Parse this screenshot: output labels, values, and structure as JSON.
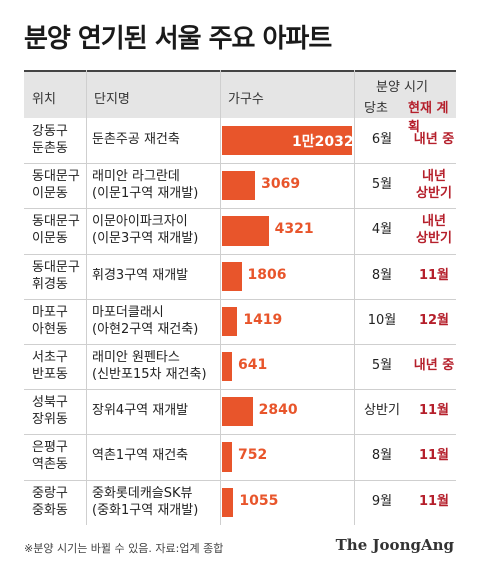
{
  "title": "분양 연기된 서울 주요 아파트",
  "headers": {
    "location": "위치",
    "complex": "단지명",
    "households": "가구수",
    "schedule": "분양 시기",
    "original": "당초",
    "current": "현재 계획"
  },
  "chart_data": {
    "type": "bar",
    "title": "분양 연기된 서울 주요 아파트",
    "categories": [
      "둔촌주공 재건축",
      "래미안 라그란데",
      "이문아이파크자이",
      "휘경3구역 재개발",
      "마포더클래시",
      "래미안 원펜타스",
      "장위4구역 재개발",
      "역촌1구역 재건축",
      "중화롯데캐슬SK뷰"
    ],
    "values": [
      12032,
      3069,
      4321,
      1806,
      1419,
      641,
      2840,
      752,
      1055
    ],
    "xlim": [
      0,
      12032
    ]
  },
  "rows": [
    {
      "loc1": "강동구",
      "loc2": "둔촌동",
      "name1": "둔촌주공 재건축",
      "name2": "",
      "count_label": "1만2032",
      "original": "6월",
      "current1": "내년 중",
      "current2": ""
    },
    {
      "loc1": "동대문구",
      "loc2": "이문동",
      "name1": "래미안 라그란데",
      "name2": "(이문1구역 재개발)",
      "count_label": "3069",
      "original": "5월",
      "current1": "내년",
      "current2": "상반기"
    },
    {
      "loc1": "동대문구",
      "loc2": "이문동",
      "name1": "이문아이파크자이",
      "name2": "(이문3구역 재개발)",
      "count_label": "4321",
      "original": "4월",
      "current1": "내년",
      "current2": "상반기"
    },
    {
      "loc1": "동대문구",
      "loc2": "휘경동",
      "name1": "휘경3구역 재개발",
      "name2": "",
      "count_label": "1806",
      "original": "8월",
      "current1": "11월",
      "current2": ""
    },
    {
      "loc1": "마포구",
      "loc2": "아현동",
      "name1": "마포더클래시",
      "name2": "(아현2구역 재건축)",
      "count_label": "1419",
      "original": "10월",
      "current1": "12월",
      "current2": ""
    },
    {
      "loc1": "서초구",
      "loc2": "반포동",
      "name1": "래미안 원펜타스",
      "name2": "(신반포15차 재건축)",
      "count_label": "641",
      "original": "5월",
      "current1": "내년 중",
      "current2": ""
    },
    {
      "loc1": "성북구",
      "loc2": "장위동",
      "name1": "장위4구역 재개발",
      "name2": "",
      "count_label": "2840",
      "original": "상반기",
      "current1": "11월",
      "current2": ""
    },
    {
      "loc1": "은평구",
      "loc2": "역촌동",
      "name1": "역촌1구역 재건축",
      "name2": "",
      "count_label": "752",
      "original": "8월",
      "current1": "11월",
      "current2": ""
    },
    {
      "loc1": "중랑구",
      "loc2": "중화동",
      "name1": "중화롯데캐슬SK뷰",
      "name2": "(중화1구역 재개발)",
      "count_label": "1055",
      "original": "9월",
      "current1": "11월",
      "current2": ""
    }
  ],
  "footer": {
    "note": "※분양 시기는 바뀔 수 있음.  자료:업계 종합",
    "brand": "The JoongAng"
  },
  "colors": {
    "bar": "#e8552b",
    "current_text": "#b51f2b",
    "header_bg": "#e5e5e5"
  }
}
